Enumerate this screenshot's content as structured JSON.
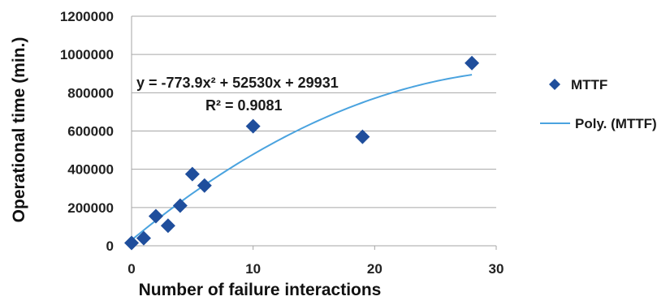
{
  "chart_data": {
    "type": "scatter",
    "xlabel": "Number of failure interactions",
    "ylabel": "Operational time (min.)",
    "xlim": [
      0,
      30
    ],
    "ylim": [
      0,
      1200000
    ],
    "x_ticks": [
      "0",
      "10",
      "20",
      "30"
    ],
    "y_ticks": [
      "0",
      "200000",
      "400000",
      "600000",
      "800000",
      "1000000",
      "1200000"
    ],
    "grid": "horizontal",
    "legend_position": "right",
    "series": [
      {
        "name": "MTTF",
        "marker": "diamond",
        "color": "#1f4e9c",
        "points": [
          {
            "x": 0,
            "y": 15000
          },
          {
            "x": 1,
            "y": 40000
          },
          {
            "x": 2,
            "y": 155000
          },
          {
            "x": 3,
            "y": 105000
          },
          {
            "x": 4,
            "y": 210000
          },
          {
            "x": 5,
            "y": 375000
          },
          {
            "x": 6,
            "y": 315000
          },
          {
            "x": 10,
            "y": 625000
          },
          {
            "x": 19,
            "y": 570000
          },
          {
            "x": 28,
            "y": 955000
          }
        ]
      }
    ],
    "trendline": {
      "name": "Poly. (MTTF)",
      "type": "polynomial",
      "color": "#4aa3df",
      "coefficients": {
        "a": -773.9,
        "b": 52530,
        "c": 29931
      },
      "x_range": [
        0,
        28
      ]
    },
    "annotations": {
      "equation": "y = -773.9x² + 52530x + 29931",
      "r_squared": "R² = 0.9081"
    }
  }
}
